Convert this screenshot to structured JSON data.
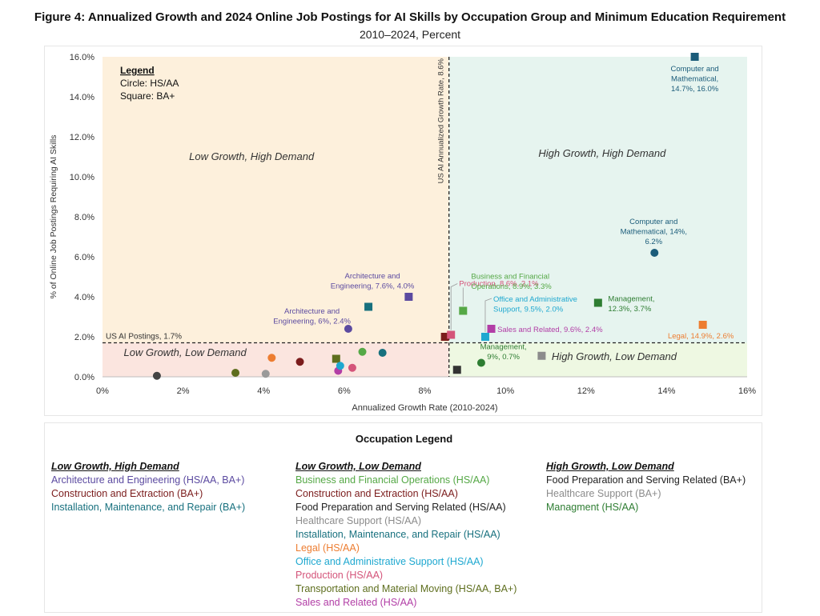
{
  "title": "Figure 4: Annualized Growth and 2024 Online Job Postings for AI Skills by Occupation Group and Minimum Education Requirement",
  "subtitle": "2010–2024, Percent",
  "chart_data": {
    "type": "scatter",
    "xlabel": "Annualized Growth Rate (2010-2024)",
    "ylabel": "% of Online Job Postings Requiring AI Skills",
    "xlim": [
      0,
      16
    ],
    "ylim": [
      0,
      16
    ],
    "x_ticks": [
      0,
      2,
      4,
      6,
      8,
      10,
      12,
      14,
      16
    ],
    "x_tick_labels": [
      "0%",
      "2%",
      "4%",
      "6%",
      "8%",
      "10%",
      "12%",
      "14%",
      "16%"
    ],
    "y_ticks": [
      0,
      2,
      4,
      6,
      8,
      10,
      12,
      14,
      16
    ],
    "y_tick_labels": [
      "0.0%",
      "2.0%",
      "4.0%",
      "6.0%",
      "8.0%",
      "10.0%",
      "12.0%",
      "14.0%",
      "16.0%"
    ],
    "reference_lines": [
      {
        "axis": "x",
        "value": 8.6,
        "label": "US AI Annualized Growth Rate, 8.6%"
      },
      {
        "axis": "y",
        "value": 1.7,
        "label": "US AI Postings, 1.7%"
      }
    ],
    "quadrants": [
      {
        "name": "low-growth-high-demand",
        "label": "Low Growth, High Demand",
        "color": "#fdf0dc"
      },
      {
        "name": "high-growth-high-demand",
        "label": "High Growth, High Demand",
        "color": "#e6f4ef"
      },
      {
        "name": "low-growth-low-demand",
        "label": "Low Growth, Low Demand",
        "color": "#fbe5df"
      },
      {
        "name": "high-growth-low-demand",
        "label": "High Growth, Low Demand",
        "color": "#eef8e2"
      }
    ],
    "legend": {
      "title": "Legend",
      "items": [
        "Circle: HS/AA",
        "Square: BA+"
      ]
    },
    "points": [
      {
        "occupation": "Computer and Mathematical",
        "edu": "BA+",
        "x": 14.7,
        "y": 16.0,
        "color": "#1b5c7a",
        "label": [
          "Computer and",
          "Mathematical,",
          "14.7%, 16.0%"
        ]
      },
      {
        "occupation": "Computer and Mathematical",
        "edu": "HS/AA",
        "x": 13.7,
        "y": 6.2,
        "color": "#1b5c7a",
        "label": [
          "Computer and",
          "Mathematical, 14%,",
          "6.2%"
        ]
      },
      {
        "occupation": "Architecture and Engineering",
        "edu": "BA+",
        "x": 7.6,
        "y": 4.0,
        "color": "#5b4aa0",
        "label": [
          "Architecture and",
          "Engineering, 7.6%, 4.0%"
        ]
      },
      {
        "occupation": "Architecture and Engineering",
        "edu": "HS/AA",
        "x": 6.1,
        "y": 2.4,
        "color": "#5b4aa0",
        "label": [
          "Architecture and",
          "Engineering, 6%, 2.4%"
        ]
      },
      {
        "occupation": "Installation, Maintenance, and Repair",
        "edu": "BA+",
        "x": 6.6,
        "y": 3.5,
        "color": "#17707e",
        "label": []
      },
      {
        "occupation": "Construction and Extraction",
        "edu": "BA+",
        "x": 8.5,
        "y": 2.0,
        "color": "#7b1c1c",
        "label": []
      },
      {
        "occupation": "Production",
        "edu": "BA+",
        "x": 8.65,
        "y": 2.1,
        "color": "#d4547a",
        "label": [
          "Production, 8.6%, 2.1%"
        ]
      },
      {
        "occupation": "Business and Financial Operations",
        "edu": "BA+",
        "x": 8.95,
        "y": 3.3,
        "color": "#55a846",
        "label": [
          "Business and Financial",
          "Operations, 8.9%, 3.3%"
        ]
      },
      {
        "occupation": "Office and Administrative Support",
        "edu": "BA+",
        "x": 9.5,
        "y": 2.0,
        "color": "#1ea8d0",
        "label": [
          "Office and Administrative",
          "Support, 9.5%, 2.0%"
        ]
      },
      {
        "occupation": "Sales and Related",
        "edu": "BA+",
        "x": 9.65,
        "y": 2.4,
        "color": "#b23ea6",
        "label": [
          "Sales and Related, 9.6%, 2.4%"
        ]
      },
      {
        "occupation": "Management",
        "edu": "BA+",
        "x": 12.3,
        "y": 3.7,
        "color": "#2e7d32",
        "label": [
          "Management,",
          "12.3%, 3.7%"
        ]
      },
      {
        "occupation": "Legal",
        "edu": "BA+",
        "x": 14.9,
        "y": 2.6,
        "color": "#ed7d31",
        "label": [
          "Legal, 14.9%, 2.6%"
        ]
      },
      {
        "occupation": "Management",
        "edu": "HS/AA",
        "x": 9.4,
        "y": 0.7,
        "color": "#2e7d32",
        "label": [
          "Management,",
          "9%, 0.7%"
        ]
      },
      {
        "occupation": "Food Preparation and Serving Related",
        "edu": "BA+",
        "x": 8.8,
        "y": 0.35,
        "color": "#333333",
        "label": []
      },
      {
        "occupation": "Healthcare Support",
        "edu": "BA+",
        "x": 10.9,
        "y": 1.05,
        "color": "#8c8c8c",
        "label": []
      },
      {
        "occupation": "Food Preparation and Serving Related",
        "edu": "HS/AA",
        "x": 1.35,
        "y": 0.05,
        "color": "#444444",
        "label": []
      },
      {
        "occupation": "Transportation and Material Moving",
        "edu": "HS/AA",
        "x": 3.3,
        "y": 0.2,
        "color": "#5e6e1e",
        "label": []
      },
      {
        "occupation": "Healthcare Support",
        "edu": "HS/AA",
        "x": 4.05,
        "y": 0.15,
        "color": "#9a9a9a",
        "label": []
      },
      {
        "occupation": "Legal",
        "edu": "HS/AA",
        "x": 4.2,
        "y": 0.95,
        "color": "#ed7d31",
        "label": []
      },
      {
        "occupation": "Construction and Extraction",
        "edu": "HS/AA",
        "x": 4.9,
        "y": 0.75,
        "color": "#7b1c1c",
        "label": []
      },
      {
        "occupation": "Transportation and Material Moving",
        "edu": "BA+",
        "x": 5.8,
        "y": 0.9,
        "color": "#5e6e1e",
        "label": []
      },
      {
        "occupation": "Sales and Related",
        "edu": "HS/AA",
        "x": 5.85,
        "y": 0.3,
        "color": "#b23ea6",
        "label": []
      },
      {
        "occupation": "Office and Administrative Support",
        "edu": "HS/AA",
        "x": 5.9,
        "y": 0.55,
        "color": "#1ea8d0",
        "label": []
      },
      {
        "occupation": "Production",
        "edu": "HS/AA",
        "x": 6.2,
        "y": 0.45,
        "color": "#d4547a",
        "label": []
      },
      {
        "occupation": "Business and Financial Operations",
        "edu": "HS/AA",
        "x": 6.45,
        "y": 1.25,
        "color": "#55a846",
        "label": []
      },
      {
        "occupation": "Installation, Maintenance, and Repair",
        "edu": "HS/AA",
        "x": 6.95,
        "y": 1.2,
        "color": "#17707e",
        "label": []
      }
    ]
  },
  "occupation_legend": {
    "title": "Occupation Legend",
    "columns": [
      {
        "heading": "Low Growth, High Demand",
        "items": [
          {
            "text": "Architecture and Engineering (HS/AA, BA+)",
            "color": "#5b4aa0"
          },
          {
            "text": "Construction and Extraction (BA+)",
            "color": "#7b1c1c"
          },
          {
            "text": "Installation, Maintenance, and Repair (BA+)",
            "color": "#17707e"
          }
        ]
      },
      {
        "heading": "Low Growth, Low Demand",
        "items": [
          {
            "text": "Business and Financial Operations (HS/AA)",
            "color": "#55a846"
          },
          {
            "text": "Construction and Extraction (HS/AA)",
            "color": "#7b1c1c"
          },
          {
            "text": "Food Preparation and Serving Related (HS/AA)",
            "color": "#222222"
          },
          {
            "text": "Healthcare Support (HS/AA)",
            "color": "#8c8c8c"
          },
          {
            "text": "Installation, Maintenance, and Repair (HS/AA)",
            "color": "#17707e"
          },
          {
            "text": "Legal (HS/AA)",
            "color": "#ed7d31"
          },
          {
            "text": "Office and Administrative Support (HS/AA)",
            "color": "#1ea8d0"
          },
          {
            "text": "Production (HS/AA)",
            "color": "#d4547a"
          },
          {
            "text": "Transportation and Material Moving (HS/AA, BA+)",
            "color": "#5e6e1e"
          },
          {
            "text": "Sales and Related (HS/AA)",
            "color": "#b23ea6"
          }
        ]
      },
      {
        "heading": "High Growth, Low Demand",
        "items": [
          {
            "text": "Food Preparation and Serving Related (BA+)",
            "color": "#222222"
          },
          {
            "text": "Healthcare Support (BA+)",
            "color": "#8c8c8c"
          },
          {
            "text": "Managment (HS/AA)",
            "color": "#2e7d32"
          }
        ]
      }
    ]
  }
}
